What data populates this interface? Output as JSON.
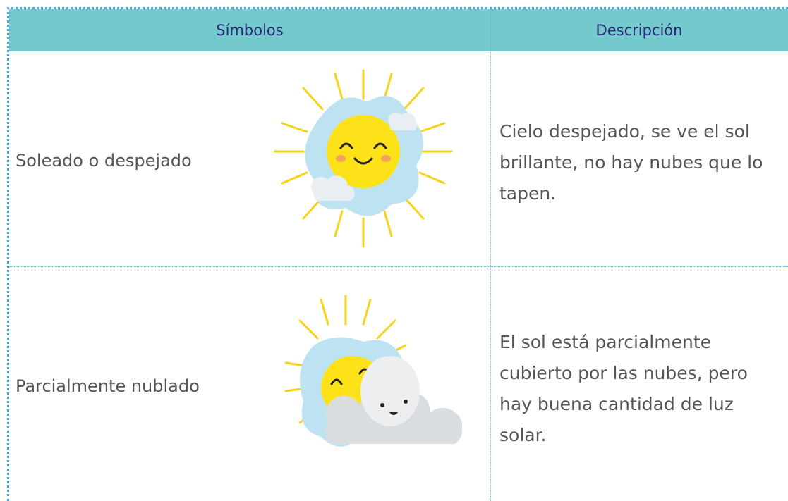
{
  "table": {
    "header": [
      "Símbolos",
      "Descripción"
    ],
    "rows": [
      [
        "Soleado o despejado",
        "Cielo despejado, se ve el sol brillante, no hay nubes que lo tapen."
      ],
      [
        "Parcialmente nublado",
        "El sol está parcialmente cubierto por las nubes, pero hay buena cantidad de luz solar."
      ]
    ]
  }
}
